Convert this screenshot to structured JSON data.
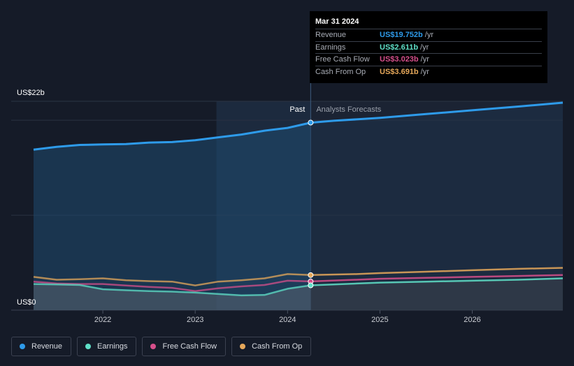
{
  "tooltip": {
    "date": "Mar 31 2024",
    "rows": [
      {
        "label": "Revenue",
        "value": "US$19.752b",
        "unit": "/yr",
        "color": "#2e9bea"
      },
      {
        "label": "Earnings",
        "value": "US$2.611b",
        "unit": "/yr",
        "color": "#5fe0c8"
      },
      {
        "label": "Free Cash Flow",
        "value": "US$3.023b",
        "unit": "/yr",
        "color": "#d64f8b"
      },
      {
        "label": "Cash From Op",
        "value": "US$3.691b",
        "unit": "/yr",
        "color": "#e6a85a"
      }
    ]
  },
  "legend": [
    {
      "label": "Revenue",
      "color": "#2e9bea"
    },
    {
      "label": "Earnings",
      "color": "#5fe0c8"
    },
    {
      "label": "Free Cash Flow",
      "color": "#d64f8b"
    },
    {
      "label": "Cash From Op",
      "color": "#e6a85a"
    }
  ],
  "chart_data": {
    "type": "line",
    "y_label_top": "US$22b",
    "y_label_bottom": "US$0",
    "ylim": [
      0,
      22
    ],
    "xlim": [
      2021.25,
      2026.98
    ],
    "x_ticks": [
      {
        "value": 2022,
        "label": "2022"
      },
      {
        "value": 2023,
        "label": "2023"
      },
      {
        "value": 2024,
        "label": "2024"
      },
      {
        "value": 2025,
        "label": "2025"
      },
      {
        "value": 2026,
        "label": "2026"
      }
    ],
    "past_label": "Past",
    "forecast_label": "Analysts Forecasts",
    "highlight_start": 2023.23,
    "divider_x": 2024.25,
    "series": [
      {
        "name": "Revenue",
        "color": "#2e9bea",
        "points": [
          [
            2021.25,
            16.9
          ],
          [
            2021.5,
            17.2
          ],
          [
            2021.75,
            17.4
          ],
          [
            2022.0,
            17.45
          ],
          [
            2022.25,
            17.5
          ],
          [
            2022.5,
            17.65
          ],
          [
            2022.75,
            17.7
          ],
          [
            2023.0,
            17.9
          ],
          [
            2023.25,
            18.2
          ],
          [
            2023.5,
            18.5
          ],
          [
            2023.75,
            18.9
          ],
          [
            2024.0,
            19.2
          ],
          [
            2024.25,
            19.752
          ]
        ],
        "forecast": [
          [
            2024.25,
            19.752
          ],
          [
            2024.5,
            19.95
          ],
          [
            2025.0,
            20.25
          ],
          [
            2025.5,
            20.65
          ],
          [
            2026.0,
            21.05
          ],
          [
            2026.5,
            21.45
          ],
          [
            2026.98,
            21.85
          ]
        ]
      },
      {
        "name": "Cash From Op",
        "color": "#e6a85a",
        "points": [
          [
            2021.25,
            3.5
          ],
          [
            2021.5,
            3.2
          ],
          [
            2021.75,
            3.25
          ],
          [
            2022.0,
            3.35
          ],
          [
            2022.25,
            3.15
          ],
          [
            2022.5,
            3.05
          ],
          [
            2022.75,
            3.0
          ],
          [
            2023.0,
            2.6
          ],
          [
            2023.25,
            3.0
          ],
          [
            2023.5,
            3.15
          ],
          [
            2023.75,
            3.35
          ],
          [
            2024.0,
            3.8
          ],
          [
            2024.25,
            3.691
          ]
        ],
        "forecast": [
          [
            2024.25,
            3.691
          ],
          [
            2024.75,
            3.8
          ],
          [
            2025.0,
            3.9
          ],
          [
            2025.5,
            4.05
          ],
          [
            2026.0,
            4.2
          ],
          [
            2026.5,
            4.35
          ],
          [
            2026.98,
            4.45
          ]
        ]
      },
      {
        "name": "Free Cash Flow",
        "color": "#d64f8b",
        "points": [
          [
            2021.25,
            3.0
          ],
          [
            2021.5,
            2.8
          ],
          [
            2021.75,
            2.75
          ],
          [
            2022.0,
            2.75
          ],
          [
            2022.25,
            2.6
          ],
          [
            2022.5,
            2.45
          ],
          [
            2022.75,
            2.35
          ],
          [
            2023.0,
            2.0
          ],
          [
            2023.25,
            2.3
          ],
          [
            2023.5,
            2.5
          ],
          [
            2023.75,
            2.65
          ],
          [
            2024.0,
            3.1
          ],
          [
            2024.25,
            3.023
          ]
        ],
        "forecast": [
          [
            2024.25,
            3.023
          ],
          [
            2024.75,
            3.2
          ],
          [
            2025.0,
            3.3
          ],
          [
            2025.5,
            3.4
          ],
          [
            2026.0,
            3.5
          ],
          [
            2026.5,
            3.6
          ],
          [
            2026.98,
            3.7
          ]
        ]
      },
      {
        "name": "Earnings",
        "color": "#5fe0c8",
        "points": [
          [
            2021.25,
            2.75
          ],
          [
            2021.5,
            2.7
          ],
          [
            2021.75,
            2.65
          ],
          [
            2022.0,
            2.2
          ],
          [
            2022.25,
            2.1
          ],
          [
            2022.5,
            2.0
          ],
          [
            2022.75,
            1.95
          ],
          [
            2023.0,
            1.85
          ],
          [
            2023.25,
            1.7
          ],
          [
            2023.5,
            1.55
          ],
          [
            2023.75,
            1.6
          ],
          [
            2024.0,
            2.25
          ],
          [
            2024.25,
            2.611
          ]
        ],
        "forecast": [
          [
            2024.25,
            2.611
          ],
          [
            2024.75,
            2.8
          ],
          [
            2025.0,
            2.9
          ],
          [
            2025.5,
            3.0
          ],
          [
            2026.0,
            3.1
          ],
          [
            2026.5,
            3.2
          ],
          [
            2026.98,
            3.35
          ]
        ]
      }
    ]
  }
}
